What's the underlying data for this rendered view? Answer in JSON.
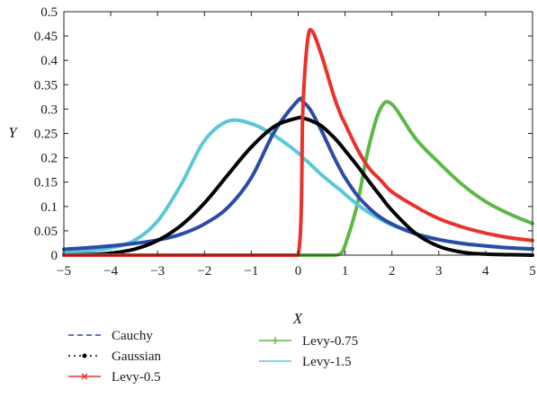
{
  "chart_data": {
    "type": "line",
    "title": "",
    "xlabel": "X",
    "ylabel": "Y",
    "xlim": [
      -5,
      5
    ],
    "ylim": [
      0,
      0.5
    ],
    "grid": false,
    "legend_placement": "below",
    "x_ticks": [
      -5,
      -4,
      -3,
      -2,
      -1,
      0,
      1,
      2,
      3,
      4,
      5
    ],
    "x_tick_labels": [
      "−5",
      "−4",
      "−3",
      "−2",
      "−1",
      "0",
      "1",
      "2",
      "3",
      "4",
      "5"
    ],
    "y_ticks": [
      0,
      0.05,
      0.1,
      0.15,
      0.2,
      0.25,
      0.3,
      0.35,
      0.4,
      0.45,
      0.5
    ],
    "y_tick_labels": [
      "0",
      "0.05",
      "0.1",
      "0.15",
      "0.2",
      "0.25",
      "0.3",
      "0.35",
      "0.4",
      "0.45",
      "0.5"
    ],
    "x": [
      -5,
      -4.5,
      -4,
      -3.5,
      -3,
      -2.5,
      -2,
      -1.5,
      -1,
      -0.5,
      0,
      0.1,
      0.2,
      0.3,
      0.5,
      0.75,
      0.9,
      1,
      1.25,
      1.5,
      1.75,
      2,
      2.5,
      3,
      3.5,
      4,
      4.5,
      5
    ],
    "series": [
      {
        "name": "Cauchy",
        "color": "#2b4ba6",
        "marker": "dashed",
        "values": [
          0.012,
          0.015,
          0.019,
          0.024,
          0.031,
          0.043,
          0.064,
          0.098,
          0.159,
          0.255,
          0.318,
          0.315,
          0.306,
          0.292,
          0.255,
          0.204,
          0.176,
          0.159,
          0.124,
          0.098,
          0.078,
          0.064,
          0.044,
          0.032,
          0.024,
          0.019,
          0.015,
          0.013
        ]
      },
      {
        "name": "Gaussian",
        "color": "#000000",
        "marker": "dotted",
        "values": [
          0.0,
          0.001,
          0.004,
          0.012,
          0.03,
          0.061,
          0.107,
          0.165,
          0.222,
          0.265,
          0.282,
          0.281,
          0.279,
          0.275,
          0.265,
          0.243,
          0.227,
          0.215,
          0.185,
          0.153,
          0.122,
          0.092,
          0.045,
          0.018,
          0.006,
          0.002,
          0.001,
          0.0
        ]
      },
      {
        "name": "Levy-0.5",
        "color": "#e8322c",
        "marker": "x",
        "values": [
          0,
          0,
          0,
          0,
          0,
          0,
          0,
          0,
          0,
          0,
          0,
          0.3,
          0.44,
          0.46,
          0.41,
          0.33,
          0.29,
          0.27,
          0.22,
          0.18,
          0.155,
          0.13,
          0.1,
          0.075,
          0.058,
          0.045,
          0.036,
          0.03
        ]
      },
      {
        "name": "Levy-0.75",
        "color": "#5cb947",
        "marker": "+",
        "values": [
          0,
          0,
          0,
          0,
          0,
          0,
          0,
          0,
          0,
          0,
          0,
          0,
          0,
          0,
          0,
          0,
          0.003,
          0.02,
          0.1,
          0.22,
          0.3,
          0.31,
          0.24,
          0.19,
          0.145,
          0.11,
          0.085,
          0.065
        ]
      },
      {
        "name": "Levy-1.5",
        "color": "#5ac8d8",
        "marker": "solid",
        "values": [
          0.005,
          0.008,
          0.015,
          0.03,
          0.07,
          0.145,
          0.235,
          0.275,
          0.27,
          0.245,
          0.21,
          0.2,
          0.192,
          0.183,
          0.165,
          0.145,
          0.134,
          0.125,
          0.105,
          0.088,
          0.074,
          0.062,
          0.044,
          0.032,
          0.024,
          0.019,
          0.015,
          0.012
        ]
      }
    ]
  }
}
